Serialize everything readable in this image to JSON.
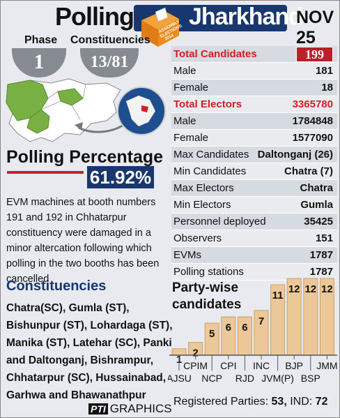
{
  "header": {
    "title": "Polling in",
    "state": "Jharkhand",
    "badge_text": [
      "ASSEMBLY",
      "ELECTIONS",
      "2014"
    ],
    "date": "NOV 25"
  },
  "phase": {
    "label": "Phase",
    "value": "1"
  },
  "constituencies_count": {
    "label": "Constituencies",
    "value": "13/81"
  },
  "polling": {
    "label": "Polling Percentage",
    "value": "61.92%",
    "note": "EVM machines at booth numbers 191 and 192 in Chhatarpur constituency were damaged in a minor altercation following which polling in the two booths has been cancelled"
  },
  "constituencies": {
    "title": "Constituencies",
    "list": "Chatra(SC), Gumla (ST), Bishunpur (ST), Lohardaga (ST), Manika (ST), Latehar (SC), Panki and Daltonganj, Bishrampur, Chhatarpur (SC), Hussainabad, Garhwa and Bhawanathpur"
  },
  "stats": [
    {
      "k": "Total Candidates",
      "v": "199",
      "hl": true,
      "boxed": true
    },
    {
      "k": "Male",
      "v": "181"
    },
    {
      "k": "Female",
      "v": "18"
    },
    {
      "k": "Total Electors",
      "v": "3365780",
      "hl": true
    },
    {
      "k": "Male",
      "v": "1784848"
    },
    {
      "k": "Female",
      "v": "1577090"
    },
    {
      "k": "Max Candidates",
      "v": "Daltonganj (26)"
    },
    {
      "k": "Min Candidates",
      "v": "Chatra  (7)"
    },
    {
      "k": "Max Electors",
      "v": "Chatra"
    },
    {
      "k": "Min Electors",
      "v": "Gumla"
    },
    {
      "k": "Personnel deployed",
      "v": "35425"
    },
    {
      "k": "Observers",
      "v": "151"
    },
    {
      "k": "EVMs",
      "v": "1787"
    },
    {
      "k": "Polling stations",
      "v": "1787"
    }
  ],
  "party_chart": {
    "title_line1": "Party-wise",
    "title_line2": "candidates"
  },
  "chart_data": {
    "type": "bar",
    "categories": [
      "AJSU",
      "CPIM",
      "NCP",
      "CPI",
      "RJD",
      "INC",
      "JVM(P)",
      "BJP",
      "BSP",
      "JMM"
    ],
    "values": [
      1,
      2,
      5,
      6,
      6,
      7,
      11,
      12,
      12,
      12
    ],
    "label_rows": [
      "bottom",
      "top",
      "bottom",
      "top",
      "bottom",
      "top",
      "bottom",
      "top",
      "bottom",
      "top"
    ],
    "ylim": [
      0,
      12
    ],
    "bar_color": "#ecc797",
    "bar_edge": "#c9a06b"
  },
  "footer": {
    "registered_label": "Registered Parties:",
    "registered_value": "53",
    "ind_label": "IND:",
    "ind_value": "72",
    "credit_logo": "PTI",
    "credit_text": "GRAPHICS"
  }
}
